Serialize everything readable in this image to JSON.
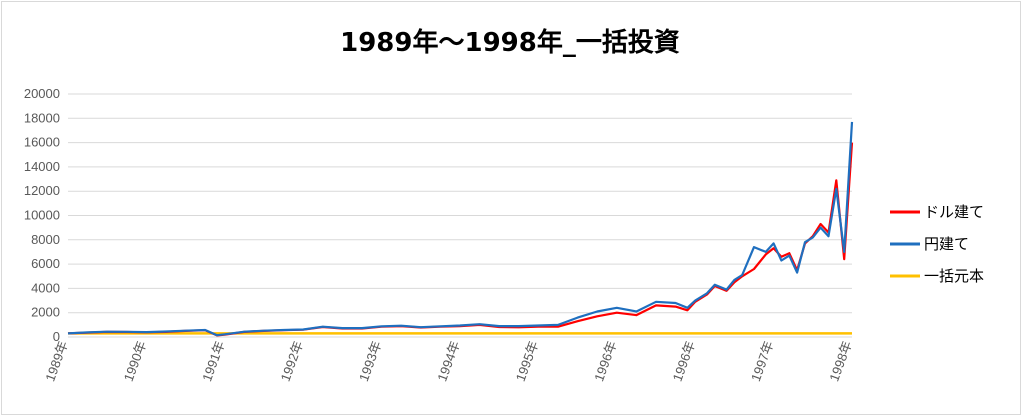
{
  "chart_data": {
    "type": "line",
    "title": "1989年～1998年_一括投資",
    "xlabel": "",
    "ylabel": "",
    "ylim": [
      0,
      20000
    ],
    "yticks": [
      0,
      2000,
      4000,
      6000,
      8000,
      10000,
      12000,
      14000,
      16000,
      18000,
      20000
    ],
    "x_tick_labels": [
      "1989年",
      "1990年",
      "1991年",
      "1992年",
      "1993年",
      "1994年",
      "1995年",
      "1996年",
      "1996年",
      "1997年",
      "1998年"
    ],
    "grid": "horizontal",
    "legend_position": "right",
    "x": [
      0,
      0.25,
      0.5,
      0.75,
      1,
      1.25,
      1.5,
      1.75,
      1.9,
      2,
      2.25,
      2.5,
      2.75,
      3,
      3.25,
      3.5,
      3.75,
      4,
      4.25,
      4.5,
      4.75,
      5,
      5.25,
      5.5,
      5.75,
      6,
      6.25,
      6.5,
      6.75,
      7,
      7.25,
      7.5,
      7.75,
      7.9,
      8,
      8.15,
      8.25,
      8.4,
      8.5,
      8.6,
      8.75,
      8.9,
      9,
      9.1,
      9.2,
      9.3,
      9.4,
      9.5,
      9.6,
      9.7,
      9.8,
      9.9,
      10
    ],
    "series": [
      {
        "name": "ドル建て",
        "color": "#ff0000",
        "values": [
          300,
          360,
          420,
          410,
          390,
          420,
          500,
          560,
          130,
          200,
          420,
          500,
          560,
          600,
          820,
          700,
          700,
          850,
          900,
          780,
          850,
          900,
          1000,
          820,
          800,
          850,
          850,
          1300,
          1700,
          2000,
          1800,
          2600,
          2500,
          2200,
          2900,
          3500,
          4200,
          3800,
          4500,
          5000,
          5600,
          6800,
          7300,
          6600,
          6900,
          5500,
          7700,
          8300,
          9300,
          8600,
          12900,
          6400,
          16000
        ]
      },
      {
        "name": "円建て",
        "color": "#1f6fbf",
        "values": [
          300,
          380,
          440,
          430,
          400,
          450,
          520,
          580,
          150,
          220,
          440,
          520,
          580,
          620,
          850,
          730,
          730,
          880,
          930,
          810,
          880,
          950,
          1050,
          900,
          900,
          950,
          1000,
          1600,
          2100,
          2400,
          2100,
          2900,
          2800,
          2400,
          3000,
          3600,
          4300,
          3900,
          4700,
          5100,
          7400,
          7000,
          7700,
          6300,
          6700,
          5300,
          7800,
          8200,
          9000,
          8300,
          12200,
          7000,
          17700
        ]
      },
      {
        "name": "一括元本",
        "color": "#ffc000",
        "values": [
          300,
          300,
          300,
          300,
          300,
          300,
          300,
          300,
          300,
          300,
          300,
          300,
          300,
          300,
          300,
          300,
          300,
          300,
          300,
          300,
          300,
          300,
          300,
          300,
          300,
          300,
          300,
          300,
          300,
          300,
          300,
          300,
          300,
          300,
          300,
          300,
          300,
          300,
          300,
          300,
          300,
          300,
          300,
          300,
          300,
          300,
          300,
          300,
          300,
          300,
          300,
          300,
          300
        ]
      }
    ]
  }
}
